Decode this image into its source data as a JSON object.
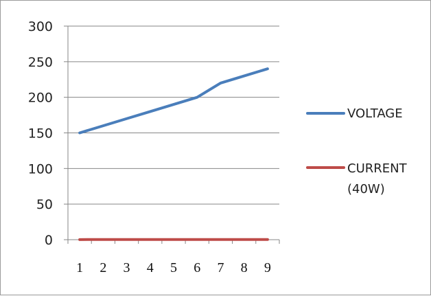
{
  "chart_data": {
    "type": "line",
    "title": "",
    "xlabel": "",
    "ylabel": "",
    "x": [
      1,
      2,
      3,
      4,
      5,
      6,
      7,
      8,
      9
    ],
    "ylim": [
      0,
      300
    ],
    "yticks": [
      0,
      50,
      100,
      150,
      200,
      250,
      300
    ],
    "grid": true,
    "legend_position": "right",
    "series": [
      {
        "name": "VOLTAGE",
        "color": "#4a7ebb",
        "values": [
          150,
          160,
          170,
          180,
          190,
          200,
          220,
          230,
          240
        ]
      },
      {
        "name": "CURRENT (40W)",
        "color": "#be4b48",
        "values": [
          0.18,
          0.19,
          0.2,
          0.2,
          0.21,
          0.21,
          0.22,
          0.22,
          0.23
        ]
      }
    ]
  }
}
